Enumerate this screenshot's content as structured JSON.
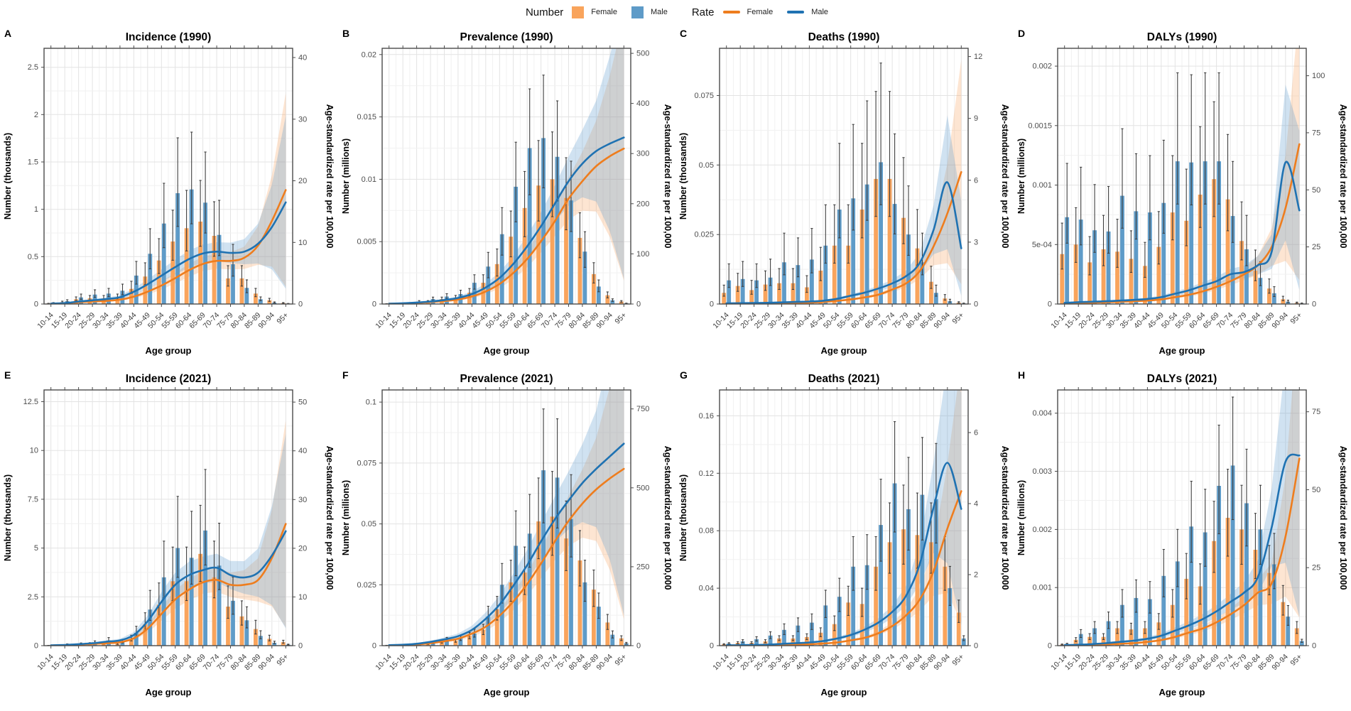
{
  "legend": {
    "number_label": "Number",
    "rate_label": "Rate",
    "female_label": "Female",
    "male_label": "Male"
  },
  "x_axis_label": "Age group",
  "right_axis_label": "Age-standardized rate per 100,000",
  "age_groups": [
    "10-14",
    "15-19",
    "20-24",
    "25-29",
    "30-34",
    "35-39",
    "40-44",
    "45-49",
    "50-54",
    "55-59",
    "60-64",
    "65-69",
    "70-74",
    "75-79",
    "80-84",
    "85-89",
    "90-94",
    "95+"
  ],
  "colors": {
    "female_bar": "#F9A45C",
    "male_bar": "#5E9BC8",
    "female_line": "#EE7D1E",
    "male_line": "#1F72B2",
    "female_ribbon": "rgba(246,153,74,0.25)",
    "male_ribbon": "rgba(100,160,210,0.30)",
    "error_bar": "#3f3f3f",
    "grid_major": "#E3E3E3",
    "grid_minor": "#F1F1F1",
    "panel_border": "#4a4a4a",
    "tick_text": "#4d4d4d",
    "axis_text": "#000000"
  },
  "uncertainty": {
    "bar_err_lo_factor": 0.7,
    "ribbon_spread": [
      0.35,
      0.35,
      0.33,
      0.32,
      0.3,
      0.28,
      0.26,
      0.24,
      0.22,
      0.2,
      0.19,
      0.18,
      0.18,
      0.2,
      0.24,
      0.33,
      0.55,
      0.85
    ]
  },
  "chart_data": [
    {
      "panel_letter": "A",
      "type": "bar+line",
      "title": "Incidence (1990)",
      "left_axis_label": "Number (thousands)",
      "left_ticks": [
        0,
        0.5,
        1,
        1.5,
        2,
        2.5
      ],
      "left_tick_labels": [
        "0",
        "0.5",
        "1",
        "1.5",
        "2",
        "2.5"
      ],
      "left_max": 2.7,
      "right_ticks": [
        0,
        10,
        20,
        30,
        40
      ],
      "right_tick_labels": [
        "0",
        "10",
        "20",
        "30",
        "40"
      ],
      "right_max": 41.5,
      "err_hi_factor": 1.5,
      "series": {
        "female_number": [
          0.005,
          0.02,
          0.05,
          0.06,
          0.06,
          0.07,
          0.16,
          0.29,
          0.46,
          0.66,
          0.8,
          0.87,
          0.72,
          0.27,
          0.27,
          0.11,
          0.04,
          0.01
        ],
        "male_number": [
          0.01,
          0.03,
          0.07,
          0.1,
          0.11,
          0.14,
          0.3,
          0.53,
          0.85,
          1.17,
          1.21,
          1.07,
          0.73,
          0.42,
          0.17,
          0.05,
          0.015,
          0.004
        ],
        "female_rate": [
          0.05,
          0.1,
          0.3,
          0.4,
          0.5,
          0.7,
          1.2,
          2.0,
          3.0,
          4.2,
          5.5,
          6.5,
          7.0,
          7.0,
          7.5,
          9.5,
          13.5,
          18.5
        ],
        "male_rate": [
          0.07,
          0.15,
          0.4,
          0.6,
          0.8,
          1.1,
          2.0,
          3.2,
          4.6,
          6.0,
          7.3,
          8.2,
          8.5,
          8.3,
          8.5,
          9.8,
          12.5,
          16.5
        ]
      }
    },
    {
      "panel_letter": "B",
      "type": "bar+line",
      "title": "Prevalence (1990)",
      "left_axis_label": "Number (millions)",
      "left_ticks": [
        0,
        0.005,
        0.01,
        0.015,
        0.02
      ],
      "left_tick_labels": [
        "0",
        "0.005",
        "0.01",
        "0.015",
        "0.02"
      ],
      "left_max": 0.0205,
      "right_ticks": [
        0,
        100,
        200,
        300,
        400,
        500
      ],
      "right_tick_labels": [
        "0",
        "100",
        "200",
        "300",
        "400",
        "500"
      ],
      "right_max": 510,
      "err_hi_factor": 1.38,
      "series": {
        "female_number": [
          2e-05,
          5e-05,
          0.0001,
          0.0002,
          0.0004,
          0.0005,
          0.0009,
          0.0017,
          0.0032,
          0.0054,
          0.0077,
          0.0095,
          0.01,
          0.0085,
          0.0053,
          0.0024,
          0.0007,
          0.0002
        ],
        "male_number": [
          3e-05,
          8e-05,
          0.0002,
          0.0004,
          0.0006,
          0.0008,
          0.0017,
          0.003,
          0.0056,
          0.0094,
          0.0125,
          0.0133,
          0.0118,
          0.0083,
          0.0042,
          0.0014,
          0.0003,
          5e-05
        ],
        "female_rate": [
          0.5,
          1,
          2,
          4,
          6,
          9,
          15,
          25,
          40,
          62,
          90,
          125,
          165,
          210,
          245,
          275,
          295,
          310
        ],
        "male_rate": [
          0.7,
          1.5,
          3,
          5,
          8,
          12,
          20,
          33,
          52,
          80,
          115,
          155,
          200,
          245,
          280,
          305,
          320,
          332
        ]
      }
    },
    {
      "panel_letter": "C",
      "type": "bar+line",
      "title": "Deaths (1990)",
      "left_axis_label": "Number (thousands)",
      "left_ticks": [
        0,
        0.025,
        0.05,
        0.075
      ],
      "left_tick_labels": [
        "0",
        "0.025",
        "0.05",
        "0.075"
      ],
      "left_max": 0.092,
      "right_ticks": [
        0,
        3,
        6,
        9,
        12
      ],
      "right_tick_labels": [
        "0",
        "3",
        "6",
        "9",
        "12"
      ],
      "right_max": 12.4,
      "err_hi_factor": 1.7,
      "series": {
        "female_number": [
          0.004,
          0.0065,
          0.005,
          0.007,
          0.0075,
          0.0075,
          0.006,
          0.012,
          0.021,
          0.021,
          0.034,
          0.045,
          0.045,
          0.031,
          0.02,
          0.008,
          0.002,
          0.0005
        ],
        "male_number": [
          0.0085,
          0.009,
          0.0085,
          0.0095,
          0.015,
          0.014,
          0.016,
          0.021,
          0.034,
          0.038,
          0.043,
          0.051,
          0.036,
          0.025,
          0.015,
          0.004,
          0.001,
          0.0002
        ],
        "female_rate": [
          0.02,
          0.03,
          0.03,
          0.04,
          0.05,
          0.06,
          0.07,
          0.1,
          0.15,
          0.22,
          0.32,
          0.45,
          0.7,
          1.0,
          1.6,
          2.8,
          4.4,
          6.4
        ],
        "male_rate": [
          0.03,
          0.04,
          0.05,
          0.06,
          0.08,
          0.1,
          0.12,
          0.16,
          0.25,
          0.4,
          0.55,
          0.75,
          1.0,
          1.35,
          2.0,
          3.6,
          5.9,
          2.7
        ]
      }
    },
    {
      "panel_letter": "D",
      "type": "bar+line",
      "title": "DALYs (1990)",
      "left_axis_label": "Number (millions)",
      "left_ticks": [
        0,
        0.0005,
        0.001,
        0.0015,
        0.002
      ],
      "left_tick_labels": [
        "0",
        "5e-04",
        "0.001",
        "0.0015",
        "0.002"
      ],
      "left_max": 0.00215,
      "right_ticks": [
        0,
        25,
        50,
        75,
        100
      ],
      "right_tick_labels": [
        "0",
        "25",
        "50",
        "75",
        "100"
      ],
      "right_max": 112,
      "err_hi_factor": 1.62,
      "series": {
        "female_number": [
          0.00042,
          0.0005,
          0.00035,
          0.00046,
          0.00044,
          0.00038,
          0.00032,
          0.00048,
          0.00077,
          0.0007,
          0.00092,
          0.00105,
          0.00088,
          0.00053,
          0.00028,
          0.00013,
          4e-05,
          1e-05
        ],
        "male_number": [
          0.00073,
          0.00071,
          0.00062,
          0.00061,
          0.00091,
          0.00078,
          0.00077,
          0.00085,
          0.0012,
          0.00119,
          0.0012,
          0.0012,
          0.00074,
          0.00046,
          0.00022,
          9e-05,
          2e-05,
          5e-06
        ],
        "female_rate": [
          0.3,
          0.5,
          0.6,
          0.8,
          1.0,
          1.2,
          1.5,
          2.0,
          3.0,
          4.0,
          5.5,
          7.5,
          10,
          13,
          17,
          25,
          42,
          70
        ],
        "male_rate": [
          0.5,
          0.8,
          1.0,
          1.2,
          1.5,
          1.8,
          2.2,
          3.0,
          4.5,
          6.0,
          8.0,
          10,
          13,
          14,
          17,
          23,
          62,
          41
        ]
      }
    },
    {
      "panel_letter": "E",
      "type": "bar+line",
      "title": "Incidence (2021)",
      "left_axis_label": "Number (thousands)",
      "left_ticks": [
        0,
        2.5,
        5,
        7.5,
        10,
        12.5
      ],
      "left_tick_labels": [
        "0",
        "2.5",
        "5",
        "7.5",
        "10",
        "12.5"
      ],
      "left_max": 13.1,
      "right_ticks": [
        0,
        10,
        20,
        30,
        40,
        50
      ],
      "right_tick_labels": [
        "0",
        "10",
        "20",
        "30",
        "40",
        "50"
      ],
      "right_max": 52.5,
      "err_hi_factor": 1.53,
      "series": {
        "female_number": [
          0.01,
          0.03,
          0.06,
          0.1,
          0.12,
          0.1,
          0.35,
          1.1,
          2.1,
          3.3,
          3.3,
          4.7,
          3.5,
          2.0,
          1.5,
          0.85,
          0.35,
          0.18
        ],
        "male_number": [
          0.02,
          0.06,
          0.09,
          0.16,
          0.27,
          0.2,
          0.65,
          1.85,
          3.5,
          5.0,
          4.5,
          5.9,
          4.1,
          2.3,
          1.3,
          0.5,
          0.15,
          0.05
        ],
        "female_rate": [
          0.05,
          0.1,
          0.2,
          0.35,
          0.5,
          0.7,
          1.5,
          3.5,
          6.5,
          9.5,
          11.5,
          13,
          13.5,
          12.5,
          12.5,
          13.5,
          18,
          25
        ],
        "male_rate": [
          0.07,
          0.15,
          0.3,
          0.5,
          0.8,
          1.1,
          2.2,
          5.0,
          9.0,
          12.5,
          14.5,
          15.5,
          16,
          14.5,
          14,
          15,
          18.5,
          23.5
        ]
      }
    },
    {
      "panel_letter": "F",
      "type": "bar+line",
      "title": "Prevalence (2021)",
      "left_axis_label": "Number (millions)",
      "left_ticks": [
        0,
        0.025,
        0.05,
        0.075,
        0.1
      ],
      "left_tick_labels": [
        "0",
        "0.025",
        "0.05",
        "0.075",
        "0.1"
      ],
      "left_max": 0.105,
      "right_ticks": [
        0,
        250,
        500,
        750
      ],
      "right_tick_labels": [
        "0",
        "250",
        "500",
        "750"
      ],
      "right_max": 810,
      "err_hi_factor": 1.35,
      "series": {
        "female_number": [
          0.0001,
          0.0002,
          0.0004,
          0.0008,
          0.0015,
          0.002,
          0.004,
          0.0065,
          0.015,
          0.026,
          0.03,
          0.051,
          0.053,
          0.044,
          0.035,
          0.023,
          0.0095,
          0.003
        ],
        "male_number": [
          0.00015,
          0.0003,
          0.0006,
          0.0012,
          0.0025,
          0.003,
          0.005,
          0.012,
          0.025,
          0.041,
          0.046,
          0.072,
          0.069,
          0.052,
          0.026,
          0.016,
          0.0045,
          0.001
        ],
        "female_rate": [
          1,
          2,
          4,
          8,
          14,
          22,
          38,
          60,
          95,
          140,
          195,
          260,
          330,
          395,
          450,
          495,
          530,
          560
        ],
        "male_rate": [
          1.5,
          3,
          6,
          12,
          20,
          30,
          50,
          85,
          130,
          190,
          255,
          330,
          400,
          460,
          515,
          560,
          600,
          640
        ]
      }
    },
    {
      "panel_letter": "G",
      "type": "bar+line",
      "title": "Deaths (2021)",
      "left_axis_label": "Number (thousands)",
      "left_ticks": [
        0,
        0.04,
        0.08,
        0.12,
        0.16
      ],
      "left_tick_labels": [
        "0",
        "0.04",
        "0.08",
        "0.12",
        "0.16"
      ],
      "left_max": 0.178,
      "right_ticks": [
        0,
        2,
        4,
        6
      ],
      "right_tick_labels": [
        "0",
        "2",
        "4",
        "6"
      ],
      "right_max": 7.2,
      "err_hi_factor": 1.38,
      "series": {
        "female_number": [
          0.001,
          0.002,
          0.002,
          0.003,
          0.005,
          0.005,
          0.006,
          0.009,
          0.015,
          0.03,
          0.029,
          0.055,
          0.072,
          0.081,
          0.077,
          0.072,
          0.055,
          0.023
        ],
        "male_number": [
          0.0015,
          0.003,
          0.0045,
          0.007,
          0.011,
          0.014,
          0.016,
          0.028,
          0.034,
          0.055,
          0.056,
          0.084,
          0.113,
          0.095,
          0.105,
          0.102,
          0.04,
          0.005
        ],
        "female_rate": [
          0.005,
          0.01,
          0.01,
          0.015,
          0.02,
          0.03,
          0.04,
          0.06,
          0.09,
          0.15,
          0.22,
          0.35,
          0.55,
          0.85,
          1.3,
          2.1,
          3.3,
          4.35
        ],
        "male_rate": [
          0.008,
          0.015,
          0.02,
          0.03,
          0.05,
          0.07,
          0.09,
          0.13,
          0.2,
          0.3,
          0.45,
          0.65,
          0.95,
          1.4,
          2.3,
          3.9,
          5.15,
          3.85
        ]
      }
    },
    {
      "panel_letter": "H",
      "type": "bar+line",
      "title": "DALYs (2021)",
      "left_axis_label": "Number (millions)",
      "left_ticks": [
        0,
        0.001,
        0.002,
        0.003,
        0.004
      ],
      "left_tick_labels": [
        "0",
        "0.001",
        "0.002",
        "0.003",
        "0.004"
      ],
      "left_max": 0.0044,
      "right_ticks": [
        0,
        25,
        50,
        75
      ],
      "right_tick_labels": [
        "0",
        "25",
        "50",
        "75"
      ],
      "right_max": 82,
      "err_hi_factor": 1.38,
      "series": {
        "female_number": [
          2e-05,
          0.0001,
          0.00015,
          0.00015,
          0.0003,
          0.00028,
          0.0003,
          0.0004,
          0.0007,
          0.00115,
          0.00102,
          0.0018,
          0.0022,
          0.002,
          0.00165,
          0.00125,
          0.00075,
          0.0003
        ],
        "male_number": [
          3e-05,
          0.0002,
          0.0003,
          0.00042,
          0.0007,
          0.00082,
          0.0008,
          0.0012,
          0.00145,
          0.00205,
          0.00195,
          0.00275,
          0.0031,
          0.00245,
          0.002,
          0.0014,
          0.0005,
          8e-05
        ],
        "female_rate": [
          0.1,
          0.2,
          0.3,
          0.4,
          0.6,
          0.8,
          1.2,
          1.8,
          2.8,
          4.2,
          5.5,
          7.5,
          10,
          13,
          17,
          20,
          35,
          60
        ],
        "male_rate": [
          0.15,
          0.3,
          0.5,
          0.8,
          1.2,
          1.6,
          2.2,
          3.2,
          4.8,
          6.5,
          8.5,
          11,
          14,
          17,
          22,
          38,
          59,
          61
        ]
      }
    }
  ]
}
